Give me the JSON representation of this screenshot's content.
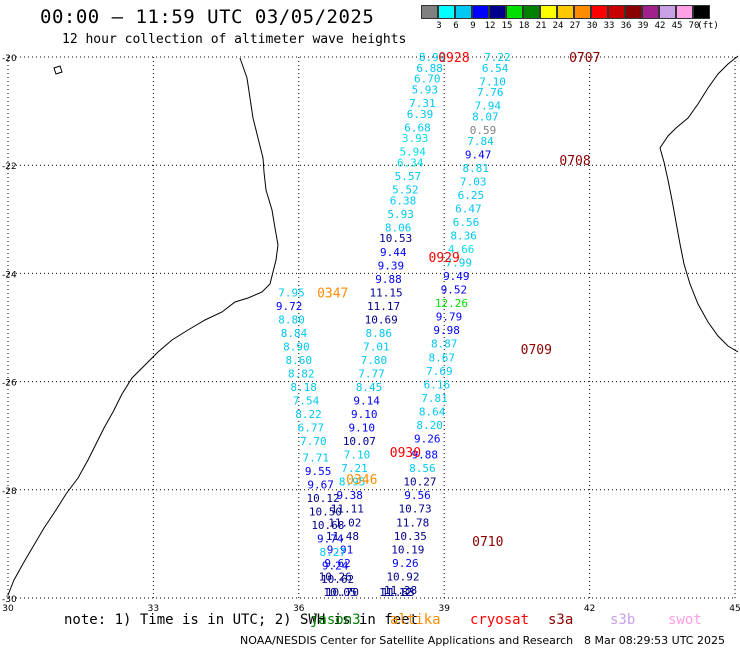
{
  "header": {
    "title": "00:00 – 11:59 UTC 03/05/2025",
    "subtitle": "12 hour collection of altimeter wave heights"
  },
  "colorbar": {
    "unit": "(ft)",
    "levels": [
      {
        "label": "3",
        "color": "#808080"
      },
      {
        "label": "6",
        "color": "#00ffff"
      },
      {
        "label": "9",
        "color": "#00c8f0"
      },
      {
        "label": "12",
        "color": "#0000ff"
      },
      {
        "label": "15",
        "color": "#00008b"
      },
      {
        "label": "18",
        "color": "#00e000"
      },
      {
        "label": "21",
        "color": "#008000"
      },
      {
        "label": "24",
        "color": "#ffff00"
      },
      {
        "label": "27",
        "color": "#ffc800"
      },
      {
        "label": "30",
        "color": "#ff8c00"
      },
      {
        "label": "33",
        "color": "#ff0000"
      },
      {
        "label": "36",
        "color": "#c80000"
      },
      {
        "label": "39",
        "color": "#8b0000"
      },
      {
        "label": "42",
        "color": "#a0208c"
      },
      {
        "label": "45",
        "color": "#c8a0e6"
      },
      {
        "label": "70",
        "color": "#ffa0e6"
      },
      {
        "label": "",
        "color": "#000000"
      }
    ]
  },
  "axes": {
    "lat_ticks": [
      {
        "label": "-20",
        "lat": -20
      },
      {
        "label": "-22",
        "lat": -22
      },
      {
        "label": "-24",
        "lat": -24
      },
      {
        "label": "-26",
        "lat": -26
      },
      {
        "label": "-28",
        "lat": -28
      },
      {
        "label": "-30",
        "lat": -30
      }
    ],
    "lon_ticks": [
      {
        "label": "30",
        "lon": 30
      },
      {
        "label": "33",
        "lon": 33
      },
      {
        "label": "36",
        "lon": 36
      },
      {
        "label": "39",
        "lon": 39
      },
      {
        "label": "42",
        "lon": 42
      },
      {
        "label": "45",
        "lon": 45
      }
    ],
    "lon_range": [
      30,
      45
    ],
    "lat_range": [
      -30,
      -20
    ],
    "grid": "dotted"
  },
  "time_labels": [
    {
      "text": "0928",
      "lon": 39.2,
      "lat": -20.0,
      "color": "#ff0000"
    },
    {
      "text": "0707",
      "lon": 41.9,
      "lat": -20.0,
      "color": "#8b0000"
    },
    {
      "text": "0708",
      "lon": 41.7,
      "lat": -21.9,
      "color": "#8b0000"
    },
    {
      "text": "0929",
      "lon": 39.0,
      "lat": -23.7,
      "color": "#ff0000"
    },
    {
      "text": "0347",
      "lon": 36.7,
      "lat": -24.35,
      "color": "#ff8c00"
    },
    {
      "text": "0709",
      "lon": 40.9,
      "lat": -25.4,
      "color": "#8b0000"
    },
    {
      "text": "0930",
      "lon": 38.2,
      "lat": -27.3,
      "color": "#ff0000"
    },
    {
      "text": "0346",
      "lon": 37.3,
      "lat": -27.8,
      "color": "#ff8c00"
    },
    {
      "text": "0710",
      "lon": 39.9,
      "lat": -28.95,
      "color": "#8b0000"
    }
  ],
  "tracks": [
    {
      "name": "cryosat",
      "points": [
        {
          "lon": 38.75,
          "lat": -20.0,
          "v": "8.99",
          "c": "#00c8f0"
        },
        {
          "lon": 38.7,
          "lat": -20.2,
          "v": "6.88",
          "c": "#00c8f0"
        },
        {
          "lon": 38.65,
          "lat": -20.4,
          "v": "6.70",
          "c": "#00c8f0"
        },
        {
          "lon": 38.6,
          "lat": -20.6,
          "v": "5.93",
          "c": "#00c8f0"
        },
        {
          "lon": 38.55,
          "lat": -20.85,
          "v": "7.31",
          "c": "#00c8f0"
        },
        {
          "lon": 38.5,
          "lat": -21.05,
          "v": "6.39",
          "c": "#00c8f0"
        },
        {
          "lon": 38.45,
          "lat": -21.3,
          "v": "6.68",
          "c": "#00c8f0"
        },
        {
          "lon": 38.4,
          "lat": -21.5,
          "v": "3.93",
          "c": "#00e0e8"
        },
        {
          "lon": 38.35,
          "lat": -21.75,
          "v": "5.94",
          "c": "#00e0e8"
        },
        {
          "lon": 38.3,
          "lat": -21.95,
          "v": "6.34",
          "c": "#00e0e8"
        },
        {
          "lon": 38.25,
          "lat": -22.2,
          "v": "5.57",
          "c": "#00c8f0"
        },
        {
          "lon": 38.2,
          "lat": -22.45,
          "v": "5.52",
          "c": "#00c8f0"
        },
        {
          "lon": 38.15,
          "lat": -22.65,
          "v": "6.38",
          "c": "#00c8f0"
        },
        {
          "lon": 38.1,
          "lat": -22.9,
          "v": "5.93",
          "c": "#00c8f0"
        },
        {
          "lon": 38.05,
          "lat": -23.15,
          "v": "8.06",
          "c": "#00c8f0"
        },
        {
          "lon": 38.0,
          "lat": -23.35,
          "v": "10.53",
          "c": "#00008b"
        },
        {
          "lon": 37.95,
          "lat": -23.6,
          "v": "9.44",
          "c": "#0000ff"
        },
        {
          "lon": 37.9,
          "lat": -23.85,
          "v": "9.39",
          "c": "#0000ff"
        },
        {
          "lon": 37.85,
          "lat": -24.1,
          "v": "9.88",
          "c": "#0000ff"
        },
        {
          "lon": 37.8,
          "lat": -24.35,
          "v": "11.15",
          "c": "#00008b"
        },
        {
          "lon": 37.75,
          "lat": -24.6,
          "v": "11.17",
          "c": "#00008b"
        },
        {
          "lon": 37.7,
          "lat": -24.85,
          "v": "10.69",
          "c": "#00008b"
        },
        {
          "lon": 37.65,
          "lat": -25.1,
          "v": "8.86",
          "c": "#00c8f0"
        },
        {
          "lon": 37.6,
          "lat": -25.35,
          "v": "7.01",
          "c": "#00c8f0"
        },
        {
          "lon": 37.55,
          "lat": -25.6,
          "v": "7.80",
          "c": "#00c8f0"
        },
        {
          "lon": 37.5,
          "lat": -25.85,
          "v": "7.77",
          "c": "#00c8f0"
        },
        {
          "lon": 37.45,
          "lat": -26.1,
          "v": "8.45",
          "c": "#00c8f0"
        },
        {
          "lon": 37.4,
          "lat": -26.35,
          "v": "9.14",
          "c": "#0000ff"
        },
        {
          "lon": 37.35,
          "lat": -26.6,
          "v": "9.10",
          "c": "#0000ff"
        },
        {
          "lon": 37.3,
          "lat": -26.85,
          "v": "9.10",
          "c": "#0000ff"
        },
        {
          "lon": 37.25,
          "lat": -27.1,
          "v": "10.07",
          "c": "#00008b"
        },
        {
          "lon": 37.2,
          "lat": -27.35,
          "v": "7.10",
          "c": "#00c8f0"
        },
        {
          "lon": 37.15,
          "lat": -27.6,
          "v": "7.21",
          "c": "#00c8f0"
        },
        {
          "lon": 37.1,
          "lat": -27.85,
          "v": "8.95",
          "c": "#00c8f0"
        },
        {
          "lon": 37.05,
          "lat": -28.1,
          "v": "9.38",
          "c": "#0000ff"
        },
        {
          "lon": 37.0,
          "lat": -28.35,
          "v": "11.11",
          "c": "#00008b"
        },
        {
          "lon": 36.95,
          "lat": -28.6,
          "v": "11.02",
          "c": "#00008b"
        },
        {
          "lon": 36.9,
          "lat": -28.85,
          "v": "11.48",
          "c": "#00008b"
        },
        {
          "lon": 36.85,
          "lat": -29.1,
          "v": "9.91",
          "c": "#0000ff"
        },
        {
          "lon": 36.8,
          "lat": -29.35,
          "v": "9.62",
          "c": "#0000ff"
        },
        {
          "lon": 36.75,
          "lat": -29.6,
          "v": "10.26",
          "c": "#00008b"
        }
      ]
    },
    {
      "name": "s3a",
      "points": [
        {
          "lon": 40.1,
          "lat": -20.0,
          "v": "7.22",
          "c": "#00c8f0"
        },
        {
          "lon": 40.05,
          "lat": -20.2,
          "v": "6.54",
          "c": "#00c8f0"
        },
        {
          "lon": 40.0,
          "lat": -20.45,
          "v": "7.10",
          "c": "#00c8f0"
        },
        {
          "lon": 39.95,
          "lat": -20.65,
          "v": "7.76",
          "c": "#00c8f0"
        },
        {
          "lon": 39.9,
          "lat": -20.9,
          "v": "7.94",
          "c": "#00c8f0"
        },
        {
          "lon": 39.85,
          "lat": -21.1,
          "v": "8.07",
          "c": "#00c8f0"
        },
        {
          "lon": 39.8,
          "lat": -21.35,
          "v": "0.59",
          "c": "#808080"
        },
        {
          "lon": 39.75,
          "lat": -21.55,
          "v": "7.84",
          "c": "#00c8f0"
        },
        {
          "lon": 39.7,
          "lat": -21.8,
          "v": "9.47",
          "c": "#0000ff"
        },
        {
          "lon": 39.65,
          "lat": -22.05,
          "v": "8.81",
          "c": "#00c8f0"
        },
        {
          "lon": 39.6,
          "lat": -22.3,
          "v": "7.03",
          "c": "#00c8f0"
        },
        {
          "lon": 39.55,
          "lat": -22.55,
          "v": "6.25",
          "c": "#00c8f0"
        },
        {
          "lon": 39.5,
          "lat": -22.8,
          "v": "6.47",
          "c": "#00c8f0"
        },
        {
          "lon": 39.45,
          "lat": -23.05,
          "v": "6.56",
          "c": "#00c8f0"
        },
        {
          "lon": 39.4,
          "lat": -23.3,
          "v": "8.36",
          "c": "#00c8f0"
        },
        {
          "lon": 39.35,
          "lat": -23.55,
          "v": "4.66",
          "c": "#00e0e8"
        },
        {
          "lon": 39.3,
          "lat": -23.8,
          "v": "7.99",
          "c": "#00c8f0"
        },
        {
          "lon": 39.25,
          "lat": -24.05,
          "v": "9.49",
          "c": "#0000ff"
        },
        {
          "lon": 39.2,
          "lat": -24.3,
          "v": "9.52",
          "c": "#0000ff"
        },
        {
          "lon": 39.15,
          "lat": -24.55,
          "v": "12.26",
          "c": "#00e000"
        },
        {
          "lon": 39.1,
          "lat": -24.8,
          "v": "9.79",
          "c": "#0000ff"
        },
        {
          "lon": 39.05,
          "lat": -25.05,
          "v": "9.98",
          "c": "#0000ff"
        },
        {
          "lon": 39.0,
          "lat": -25.3,
          "v": "8.87",
          "c": "#00c8f0"
        },
        {
          "lon": 38.95,
          "lat": -25.55,
          "v": "8.67",
          "c": "#00c8f0"
        },
        {
          "lon": 38.9,
          "lat": -25.8,
          "v": "7.69",
          "c": "#00c8f0"
        },
        {
          "lon": 38.85,
          "lat": -26.05,
          "v": "6.16",
          "c": "#00c8f0"
        },
        {
          "lon": 38.8,
          "lat": -26.3,
          "v": "7.81",
          "c": "#00c8f0"
        },
        {
          "lon": 38.75,
          "lat": -26.55,
          "v": "8.64",
          "c": "#00c8f0"
        },
        {
          "lon": 38.7,
          "lat": -26.8,
          "v": "8.20",
          "c": "#00c8f0"
        },
        {
          "lon": 38.65,
          "lat": -27.05,
          "v": "9.26",
          "c": "#0000ff"
        },
        {
          "lon": 38.6,
          "lat": -27.35,
          "v": "9.88",
          "c": "#0000ff"
        },
        {
          "lon": 38.55,
          "lat": -27.6,
          "v": "8.56",
          "c": "#00c8f0"
        },
        {
          "lon": 38.5,
          "lat": -27.85,
          "v": "10.27",
          "c": "#00008b"
        },
        {
          "lon": 38.45,
          "lat": -28.1,
          "v": "9.56",
          "c": "#0000ff"
        },
        {
          "lon": 38.4,
          "lat": -28.35,
          "v": "10.73",
          "c": "#00008b"
        },
        {
          "lon": 38.35,
          "lat": -28.6,
          "v": "11.78",
          "c": "#00008b"
        },
        {
          "lon": 38.3,
          "lat": -28.85,
          "v": "10.35",
          "c": "#00008b"
        },
        {
          "lon": 38.25,
          "lat": -29.1,
          "v": "10.19",
          "c": "#00008b"
        },
        {
          "lon": 38.2,
          "lat": -29.35,
          "v": "9.26",
          "c": "#0000ff"
        },
        {
          "lon": 38.15,
          "lat": -29.6,
          "v": "10.92",
          "c": "#00008b"
        },
        {
          "lon": 38.1,
          "lat": -29.85,
          "v": "11.38",
          "c": "#00008b"
        },
        {
          "lon": 38.05,
          "lat": -30.1,
          "v": "11.83",
          "c": "#00008b"
        },
        {
          "lon": 38.0,
          "lat": -30.35,
          "v": "11.12",
          "c": "#00008b"
        }
      ]
    },
    {
      "name": "altika",
      "points": [
        {
          "lon": 35.85,
          "lat": -24.35,
          "v": "7.95",
          "c": "#00c8f0"
        },
        {
          "lon": 35.8,
          "lat": -24.6,
          "v": "9.72",
          "c": "#0000ff"
        },
        {
          "lon": 35.85,
          "lat": -24.85,
          "v": "8.80",
          "c": "#00c8f0"
        },
        {
          "lon": 35.9,
          "lat": -25.1,
          "v": "8.84",
          "c": "#00c8f0"
        },
        {
          "lon": 35.95,
          "lat": -25.35,
          "v": "8.90",
          "c": "#00c8f0"
        },
        {
          "lon": 36.0,
          "lat": -25.6,
          "v": "8.60",
          "c": "#00c8f0"
        },
        {
          "lon": 36.05,
          "lat": -25.85,
          "v": "8.82",
          "c": "#00c8f0"
        },
        {
          "lon": 36.1,
          "lat": -26.1,
          "v": "8.18",
          "c": "#00c8f0"
        },
        {
          "lon": 36.15,
          "lat": -26.35,
          "v": "7.54",
          "c": "#00c8f0"
        },
        {
          "lon": 36.2,
          "lat": -26.6,
          "v": "8.22",
          "c": "#00c8f0"
        },
        {
          "lon": 36.25,
          "lat": -26.85,
          "v": "6.77",
          "c": "#00c8f0"
        },
        {
          "lon": 36.3,
          "lat": -27.1,
          "v": "7.70",
          "c": "#00c8f0"
        },
        {
          "lon": 36.35,
          "lat": -27.4,
          "v": "7.71",
          "c": "#00c8f0"
        },
        {
          "lon": 36.4,
          "lat": -27.65,
          "v": "9.55",
          "c": "#0000ff"
        },
        {
          "lon": 36.45,
          "lat": -27.9,
          "v": "9.67",
          "c": "#0000ff"
        },
        {
          "lon": 36.5,
          "lat": -28.15,
          "v": "10.12",
          "c": "#00008b"
        },
        {
          "lon": 36.55,
          "lat": -28.4,
          "v": "10.50",
          "c": "#00008b"
        },
        {
          "lon": 36.6,
          "lat": -28.65,
          "v": "10.68",
          "c": "#00008b"
        },
        {
          "lon": 36.65,
          "lat": -28.9,
          "v": "9.74",
          "c": "#0000ff"
        },
        {
          "lon": 36.7,
          "lat": -29.15,
          "v": "8.27",
          "c": "#00c8f0"
        },
        {
          "lon": 36.75,
          "lat": -29.4,
          "v": "9.24",
          "c": "#0000ff"
        },
        {
          "lon": 36.8,
          "lat": -29.65,
          "v": "10.62",
          "c": "#00008b"
        },
        {
          "lon": 36.85,
          "lat": -29.9,
          "v": "10.05",
          "c": "#00008b"
        },
        {
          "lon": 36.9,
          "lat": -30.15,
          "v": "10.70",
          "c": "#00008b"
        }
      ]
    }
  ],
  "footer": {
    "note": "note: 1) Time is in UTC; 2) SWH is in feet",
    "missions": [
      {
        "label": "jason3",
        "color": "#008000"
      },
      {
        "label": "altika",
        "color": "#ff8c00"
      },
      {
        "label": "cryosat",
        "color": "#ff0000"
      },
      {
        "label": "s3a",
        "color": "#8b0000"
      },
      {
        "label": "s3b",
        "color": "#c8a0e6"
      },
      {
        "label": "swot",
        "color": "#ffa0e6"
      }
    ],
    "credit": "NOAA/NESDIS Center for Satellite Applications and Research",
    "timestamp": "8 Mar 08:29:53 UTC 2025"
  }
}
